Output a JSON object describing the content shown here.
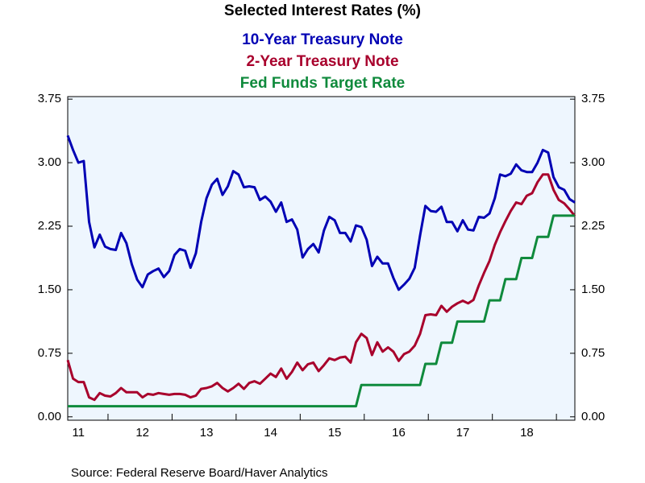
{
  "chart_data": {
    "type": "line",
    "title": "Selected Interest Rates (%)",
    "source": "Source:  Federal Reserve Board/Haver Analytics",
    "categories": [
      null,
      null,
      "11",
      null,
      null,
      null,
      null,
      null,
      null,
      null,
      null,
      null,
      null,
      null,
      "12",
      null,
      null,
      null,
      null,
      null,
      null,
      null,
      null,
      null,
      null,
      null,
      "13",
      null,
      null,
      null,
      null,
      null,
      null,
      null,
      null,
      null,
      null,
      null,
      "14",
      null,
      null,
      null,
      null,
      null,
      null,
      null,
      null,
      null,
      null,
      null,
      "15",
      null,
      null,
      null,
      null,
      null,
      null,
      null,
      null,
      null,
      null,
      null,
      "16",
      null,
      null,
      null,
      null,
      null,
      null,
      null,
      null,
      null,
      null,
      null,
      "17",
      null,
      null,
      null,
      null,
      null,
      null,
      null,
      null,
      null,
      null,
      null,
      "18",
      null,
      null,
      null,
      null,
      null,
      null,
      null,
      null,
      null
    ],
    "series": [
      {
        "name": "10-Year Treasury Note",
        "color": "#0000b4",
        "values": [
          3.32,
          3.15,
          3.0,
          3.02,
          2.3,
          2.0,
          2.15,
          2.01,
          1.98,
          1.97,
          2.17,
          2.05,
          1.8,
          1.62,
          1.53,
          1.68,
          1.72,
          1.75,
          1.65,
          1.72,
          1.91,
          1.98,
          1.96,
          1.76,
          1.93,
          2.3,
          2.58,
          2.74,
          2.81,
          2.62,
          2.72,
          2.9,
          2.86,
          2.71,
          2.72,
          2.71,
          2.56,
          2.6,
          2.54,
          2.42,
          2.53,
          2.3,
          2.33,
          2.21,
          1.88,
          1.98,
          2.04,
          1.94,
          2.2,
          2.36,
          2.32,
          2.17,
          2.17,
          2.07,
          2.26,
          2.24,
          2.09,
          1.78,
          1.89,
          1.81,
          1.81,
          1.64,
          1.5,
          1.56,
          1.63,
          1.76,
          2.14,
          2.49,
          2.43,
          2.42,
          2.48,
          2.3,
          2.3,
          2.19,
          2.32,
          2.21,
          2.2,
          2.36,
          2.35,
          2.4,
          2.58,
          2.86,
          2.84,
          2.87,
          2.98,
          2.91,
          2.89,
          2.89,
          3.0,
          3.15,
          3.12,
          2.83,
          2.71,
          2.68,
          2.57,
          2.53
        ]
      },
      {
        "name": "2-Year Treasury Note",
        "color": "#a8002c",
        "values": [
          0.67,
          0.45,
          0.41,
          0.41,
          0.23,
          0.2,
          0.28,
          0.25,
          0.24,
          0.28,
          0.34,
          0.29,
          0.29,
          0.29,
          0.23,
          0.27,
          0.26,
          0.28,
          0.27,
          0.26,
          0.27,
          0.27,
          0.26,
          0.23,
          0.25,
          0.33,
          0.34,
          0.36,
          0.4,
          0.34,
          0.3,
          0.34,
          0.39,
          0.33,
          0.4,
          0.42,
          0.39,
          0.45,
          0.51,
          0.47,
          0.57,
          0.45,
          0.53,
          0.64,
          0.55,
          0.62,
          0.64,
          0.54,
          0.61,
          0.69,
          0.67,
          0.7,
          0.71,
          0.64,
          0.88,
          0.98,
          0.93,
          0.73,
          0.88,
          0.77,
          0.82,
          0.77,
          0.66,
          0.74,
          0.77,
          0.84,
          0.98,
          1.2,
          1.21,
          1.2,
          1.31,
          1.24,
          1.3,
          1.34,
          1.37,
          1.34,
          1.38,
          1.55,
          1.7,
          1.84,
          2.03,
          2.18,
          2.31,
          2.43,
          2.53,
          2.51,
          2.61,
          2.64,
          2.77,
          2.86,
          2.86,
          2.68,
          2.56,
          2.52,
          2.45,
          2.37
        ]
      },
      {
        "name": "Fed Funds Target Rate",
        "color": "#0f8a3c",
        "values": [
          0.125,
          0.125,
          0.125,
          0.125,
          0.125,
          0.125,
          0.125,
          0.125,
          0.125,
          0.125,
          0.125,
          0.125,
          0.125,
          0.125,
          0.125,
          0.125,
          0.125,
          0.125,
          0.125,
          0.125,
          0.125,
          0.125,
          0.125,
          0.125,
          0.125,
          0.125,
          0.125,
          0.125,
          0.125,
          0.125,
          0.125,
          0.125,
          0.125,
          0.125,
          0.125,
          0.125,
          0.125,
          0.125,
          0.125,
          0.125,
          0.125,
          0.125,
          0.125,
          0.125,
          0.125,
          0.125,
          0.125,
          0.125,
          0.125,
          0.125,
          0.125,
          0.125,
          0.125,
          0.125,
          0.125,
          0.375,
          0.375,
          0.375,
          0.375,
          0.375,
          0.375,
          0.375,
          0.375,
          0.375,
          0.375,
          0.375,
          0.375,
          0.625,
          0.625,
          0.625,
          0.875,
          0.875,
          0.875,
          1.125,
          1.125,
          1.125,
          1.125,
          1.125,
          1.125,
          1.375,
          1.375,
          1.375,
          1.625,
          1.625,
          1.625,
          1.875,
          1.875,
          1.875,
          2.125,
          2.125,
          2.125,
          2.375,
          2.375,
          2.375,
          2.375,
          2.375
        ]
      }
    ],
    "ylim": [
      -0.04,
      3.78
    ],
    "yticks": [
      {
        "value": 0,
        "label": "0.00"
      },
      {
        "value": 0.75,
        "label": "0.75"
      },
      {
        "value": 1.5,
        "label": "1.50"
      },
      {
        "value": 2.25,
        "label": "2.25"
      },
      {
        "value": 3,
        "label": "3.00"
      },
      {
        "value": 3.75,
        "label": "3.75"
      }
    ],
    "grid": false
  }
}
